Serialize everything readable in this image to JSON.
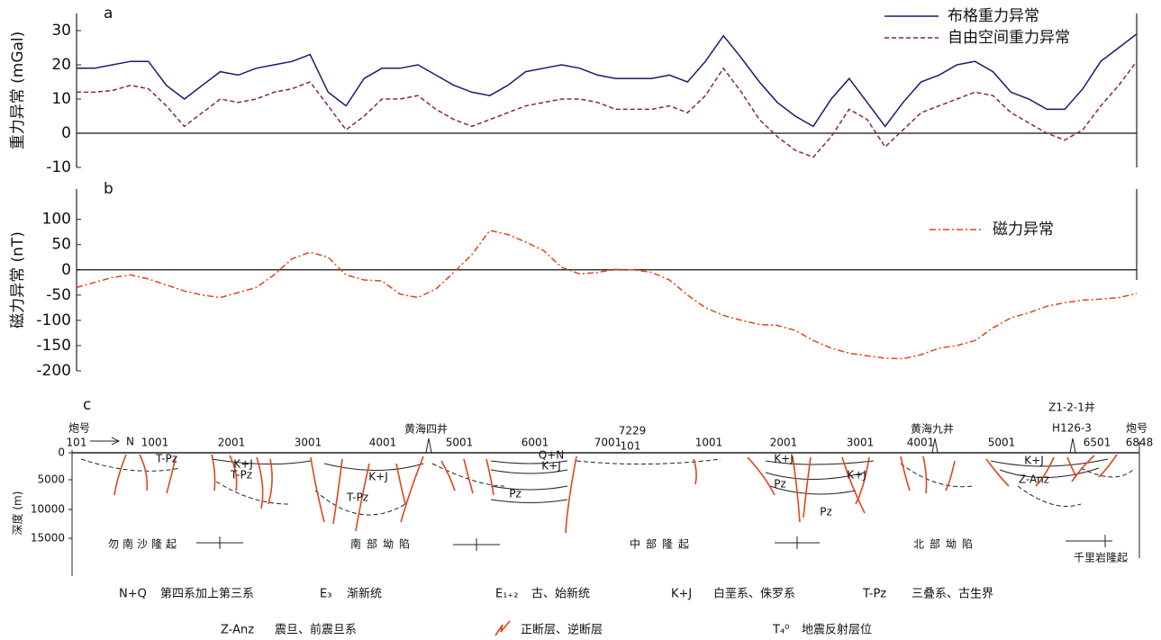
{
  "chart_data": [
    {
      "type": "line",
      "label": "a",
      "y_axis_title": "重力异常 (mGal)",
      "ylim": [
        -10,
        35
      ],
      "yticks": [
        -10,
        0,
        10,
        20,
        30
      ],
      "zero_line": true,
      "legend": "upper right",
      "series": [
        {
          "name": "布格重力异常",
          "color": "#1a1a6e",
          "linestyle": "solid",
          "values": [
            19,
            19,
            20,
            21,
            21,
            14,
            10,
            14,
            18,
            17,
            19,
            20,
            21,
            23,
            12,
            8,
            16,
            19,
            19,
            20,
            17,
            14,
            12,
            11,
            14,
            18,
            19,
            20,
            19,
            17,
            16,
            16,
            16,
            17,
            15,
            21,
            28.5,
            22,
            15,
            9,
            5,
            2,
            10,
            16,
            9,
            2,
            9,
            15,
            17,
            20,
            21,
            18,
            12,
            10,
            7,
            7,
            13,
            21,
            25,
            29
          ]
        },
        {
          "name": "自由空间重力异常",
          "color": "#8b2252",
          "linestyle": "dashed",
          "values": [
            12,
            12,
            12.5,
            14,
            13,
            8,
            2,
            6,
            10,
            9,
            10,
            12,
            13,
            15,
            8,
            1,
            5,
            10,
            10,
            11,
            7,
            4,
            2,
            4,
            6,
            8,
            9,
            10,
            10,
            9,
            7,
            7,
            7,
            8,
            6,
            11,
            19,
            12,
            4,
            -1,
            -5,
            -7,
            -1,
            7,
            4,
            -4,
            1,
            6,
            8,
            10,
            12,
            11,
            6,
            3,
            0,
            -2,
            1,
            8,
            14,
            21
          ]
        }
      ]
    },
    {
      "type": "line",
      "label": "b",
      "y_axis_title": "磁力异常 (nT)",
      "ylim": [
        -200,
        160
      ],
      "yticks": [
        -200,
        -150,
        -100,
        -50,
        0,
        50,
        100
      ],
      "zero_line": true,
      "legend": "upper right",
      "series": [
        {
          "name": "磁力异常",
          "color": "#e0441b",
          "linestyle": "dashdot",
          "values": [
            -35,
            -25,
            -15,
            -10,
            -18,
            -30,
            -42,
            -50,
            -55,
            -45,
            -35,
            -10,
            22,
            35,
            25,
            -10,
            -20,
            -22,
            -48,
            -55,
            -38,
            -5,
            30,
            78,
            70,
            55,
            38,
            5,
            -8,
            -5,
            1,
            0,
            -5,
            -20,
            -50,
            -75,
            -90,
            -100,
            -108,
            -110,
            -120,
            -140,
            -155,
            -165,
            -170,
            -175,
            -176,
            -168,
            -155,
            -150,
            -140,
            -115,
            -95,
            -85,
            -72,
            -65,
            -60,
            -58,
            -55,
            -47
          ]
        }
      ]
    }
  ],
  "section": {
    "label": "c",
    "y_axis_title": "深度 (m)",
    "depth_ticks": [
      "0",
      "5000",
      "10000",
      "15000"
    ],
    "shot_label_left": "炮号",
    "shot_label_right": "炮号",
    "direction": "N",
    "shots": [
      "101",
      "1001",
      "2001",
      "3001",
      "4001",
      "5001",
      "6001",
      "7001",
      "7229",
      "101",
      "1001",
      "2001",
      "3001",
      "4001",
      "5001",
      "6501",
      "6848"
    ],
    "wells": [
      "黄海四井",
      "黄海九井",
      "Z1-2-1井",
      "H126-3"
    ],
    "units": [
      "勿南沙隆起",
      "南部坳陷",
      "中部隆起",
      "北部坳陷",
      "千里岩隆起"
    ],
    "strata": [
      "T-Pz",
      "K+J",
      "T-Pz",
      "T-Pz",
      "K+J",
      "Q+N",
      "K+J",
      "Pz",
      "K+J",
      "Pz",
      "Pz",
      "K+J",
      "Z-Anz",
      "K+J"
    ],
    "legend": [
      {
        "code": "N+Q",
        "text": "第四系加上第三系"
      },
      {
        "code": "E₃",
        "text": "渐新统"
      },
      {
        "code": "E₁₊₂",
        "text": "古、始新统"
      },
      {
        "code": "K+J",
        "text": "白垩系、侏罗系"
      },
      {
        "code": "T-Pz",
        "text": "三叠系、古生界"
      },
      {
        "code": "Z-Anz",
        "text": "震旦、前震旦系"
      },
      {
        "text": "正断层、逆断层"
      },
      {
        "code": "T₄⁰",
        "text": "地震反射层位"
      }
    ]
  }
}
